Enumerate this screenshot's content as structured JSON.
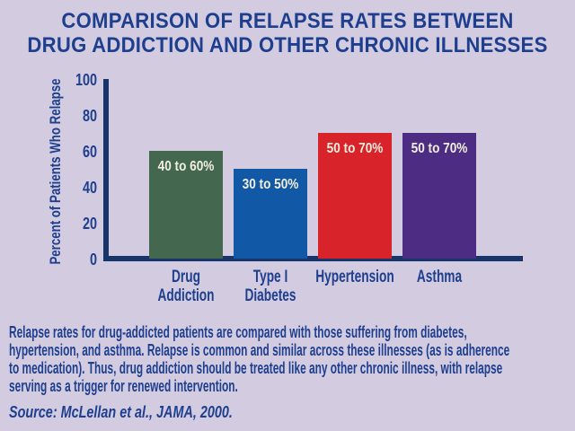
{
  "colors": {
    "background": "#d3cce1",
    "text_navy": "#1e3e8e",
    "axis": "#17356b",
    "bar_label_text": "#f2eedd"
  },
  "title": {
    "line1": "COMPARISON OF RELAPSE RATES BETWEEN",
    "line2": "DRUG ADDICTION AND OTHER CHRONIC ILLNESSES"
  },
  "chart_data": {
    "type": "bar",
    "title": "Comparison of relapse rates between drug addiction and other chronic illnesses",
    "ylabel": "Percent of Patients Who Relapse",
    "xlabel": "",
    "ylim": [
      0,
      100
    ],
    "yticks": [
      0,
      20,
      40,
      60,
      80,
      100
    ],
    "grid": false,
    "legend": "none",
    "categories": [
      "Drug Addiction",
      "Type I Diabetes",
      "Hypertension",
      "Asthma"
    ],
    "category_lines": [
      [
        "Drug",
        "Addiction"
      ],
      [
        "Type I",
        "Diabetes"
      ],
      [
        "Hypertension"
      ],
      [
        "Asthma"
      ]
    ],
    "values": [
      60,
      50,
      70,
      70
    ],
    "bar_labels": [
      "40 to 60%",
      "30 to 50%",
      "50 to 70%",
      "50 to 70%"
    ],
    "bar_colors": [
      "#43684f",
      "#1159a6",
      "#d8232a",
      "#4c2d83"
    ]
  },
  "caption": {
    "lines": [
      "Relapse rates for drug-addicted patients are compared with those suffering from diabetes,",
      "hypertension, and asthma. Relapse is common and similar across these illnesses (as is adherence",
      "to medication). Thus, drug addiction should be treated like any other chronic illness, with relapse",
      "serving as a trigger for renewed intervention."
    ]
  },
  "source": {
    "text": "Source: McLellan et al., JAMA, 2000."
  }
}
